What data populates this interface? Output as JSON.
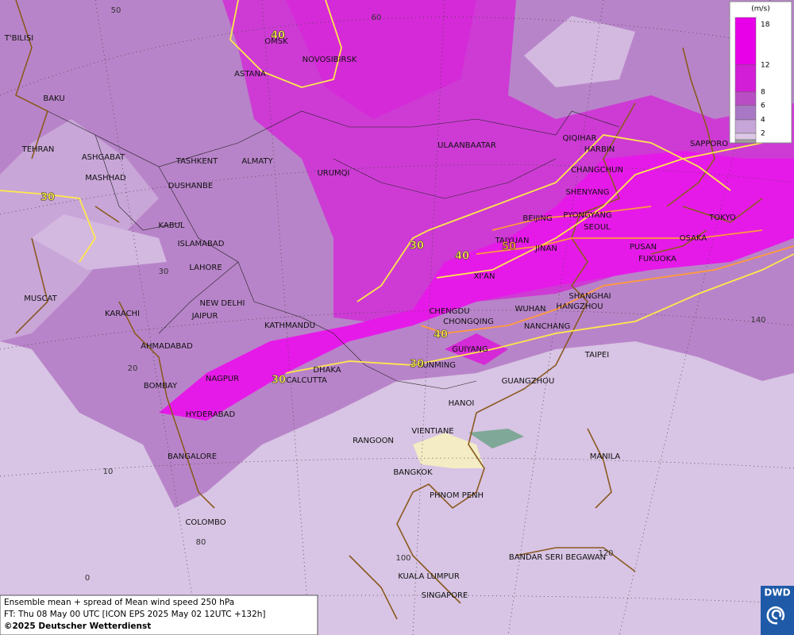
{
  "map": {
    "cities": [
      "OMSK",
      "NOVOSIBIRSK",
      "ASTANA",
      "T'BILISI",
      "BAKU",
      "TEHRAN",
      "ASHGABAT",
      "MASHHAD",
      "TASHKENT",
      "ALMATY",
      "DUSHANBE",
      "URUMQI",
      "ULAANBAATAR",
      "QIQIHAR",
      "HARBIN",
      "CHANGCHUN",
      "SHENYANG",
      "BEIJING",
      "PYONGYANG",
      "SEOUL",
      "SAPPORO",
      "TOKYO",
      "OSAKA",
      "PUSAN",
      "FUKUOKA",
      "TAIYUAN",
      "JINAN",
      "KABUL",
      "ISLAMABAD",
      "LAHORE",
      "NEW DELHI",
      "JAIPUR",
      "MUSCAT",
      "KARACHI",
      "AHMADABAD",
      "XI'AN",
      "CHENGDU",
      "CHONGQING",
      "WUHAN",
      "SHANGHAI",
      "HANGZHOU",
      "NANCHANG",
      "KATHMANDU",
      "GUIYANG",
      "KUNMING",
      "TAIPEI",
      "DHAKA",
      "CALCUTTA",
      "NAGPUR",
      "BOMBAY",
      "HYDERABAD",
      "GUANGZHOU",
      "HANOI",
      "RANGOON",
      "VIENTIANE",
      "BANGKOK",
      "PHNOM PENH",
      "MANILA",
      "BANGALORE",
      "COLOMBO",
      "BANDAR SERI BEGAWAN",
      "KUALA LUMPUR",
      "SINGAPORE"
    ],
    "contour_labels": [
      40,
      30,
      30,
      40,
      50,
      40,
      30,
      30
    ],
    "grid_labels": [
      50,
      60,
      30,
      20,
      10,
      0,
      80,
      100,
      120,
      140
    ]
  },
  "legend": {
    "title": "(m/s)",
    "ticks": [
      18,
      12,
      8,
      6,
      4,
      2
    ],
    "colors": [
      "#e800e8",
      "#d21ed6",
      "#b94ec4",
      "#a978c4",
      "#c6a6d8",
      "#dcc8e6",
      "#a0a0a0"
    ]
  },
  "footer": {
    "lines": [
      "Ensemble mean + spread of Mean wind speed 250 hPa",
      "FT: Thu 08 May 00 UTC [ICON EPS 2025 May 02 12UTC +132h]",
      "©2025 Deutscher Wetterdienst"
    ]
  },
  "logo": "DWD"
}
